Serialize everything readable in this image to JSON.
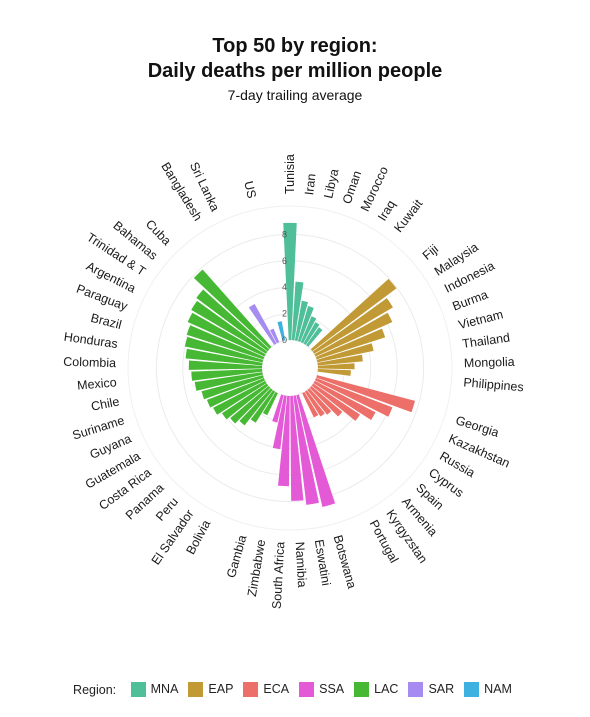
{
  "chart_data": {
    "type": "bar",
    "projection": "polar",
    "title": "Top 50 by region:",
    "title_line2": "Daily deaths per million people",
    "subtitle": "7-day trailing average",
    "radial_ticks": [
      "0",
      "2",
      "4",
      "6",
      "8"
    ],
    "radial_tick_values": [
      0,
      2,
      4,
      6,
      8
    ],
    "rmax": 10,
    "legend": {
      "title": "Region:",
      "position": "bottom",
      "entries": [
        {
          "code": "MNA",
          "color": "#4fbf9a"
        },
        {
          "code": "EAP",
          "color": "#c19a36"
        },
        {
          "code": "ECA",
          "color": "#ec6f6a"
        },
        {
          "code": "SSA",
          "color": "#e45ad6"
        },
        {
          "code": "LAC",
          "color": "#46b833"
        },
        {
          "code": "SAR",
          "color": "#a68cf0"
        },
        {
          "code": "NAM",
          "color": "#3fb1e0"
        }
      ]
    },
    "series": [
      {
        "name": "MNA",
        "categories": [
          "Tunisia",
          "Iran",
          "Libya",
          "Oman",
          "Morocco",
          "Iraq",
          "Kuwait"
        ],
        "values": [
          9.6,
          4.8,
          3.3,
          3.0,
          2.3,
          2.0,
          1.8
        ]
      },
      {
        "name": "EAP",
        "categories": [
          "Fiji",
          "Malaysia",
          "Indonesia",
          "Burma",
          "Vietnam",
          "Thailand",
          "Mongolia",
          "Philippines"
        ],
        "values": [
          8.6,
          7.5,
          6.9,
          5.9,
          4.7,
          3.7,
          3.0,
          2.7
        ]
      },
      {
        "name": "ECA",
        "categories": [
          "Georgia",
          "Kazakhstan",
          "Russia",
          "Cyprus",
          "Spain",
          "Armenia",
          "Kyrgyzstan",
          "Portugal"
        ],
        "values": [
          8.3,
          6.7,
          5.6,
          4.6,
          3.3,
          2.6,
          2.4,
          2.2
        ]
      },
      {
        "name": "SSA",
        "categories": [
          "Botswana",
          "Eswatini",
          "Namibia",
          "South Africa",
          "Zimbabwe",
          "Gambia"
        ],
        "values": [
          9.4,
          9.0,
          8.6,
          7.4,
          4.4,
          2.3
        ]
      },
      {
        "name": "LAC",
        "categories": [
          "Bolivia",
          "El Salvador",
          "Peru",
          "Panama",
          "Costa Rica",
          "Guatemala",
          "Guyana",
          "Suriname",
          "Chile",
          "Mexico",
          "Colombia",
          "Honduras",
          "Brazil",
          "Paraguay",
          "Argentina",
          "Trinidad & T",
          "Bahamas",
          "Cuba"
        ],
        "values": [
          2.0,
          3.0,
          3.7,
          4.1,
          4.4,
          4.8,
          5.0,
          5.2,
          5.6,
          5.8,
          6.0,
          6.3,
          6.5,
          6.6,
          6.9,
          7.1,
          7.3,
          8.5
        ]
      },
      {
        "name": "SAR",
        "categories": [
          "Bangladesh",
          "Sri Lanka"
        ],
        "values": [
          3.7,
          1.2
        ]
      },
      {
        "name": "NAM",
        "categories": [
          "US"
        ],
        "values": [
          1.6
        ]
      }
    ],
    "order": [
      "MNA",
      "EAP",
      "ECA",
      "SSA",
      "LAC",
      "SAR",
      "NAM"
    ],
    "group_gap_slots": 1,
    "grid": true
  }
}
